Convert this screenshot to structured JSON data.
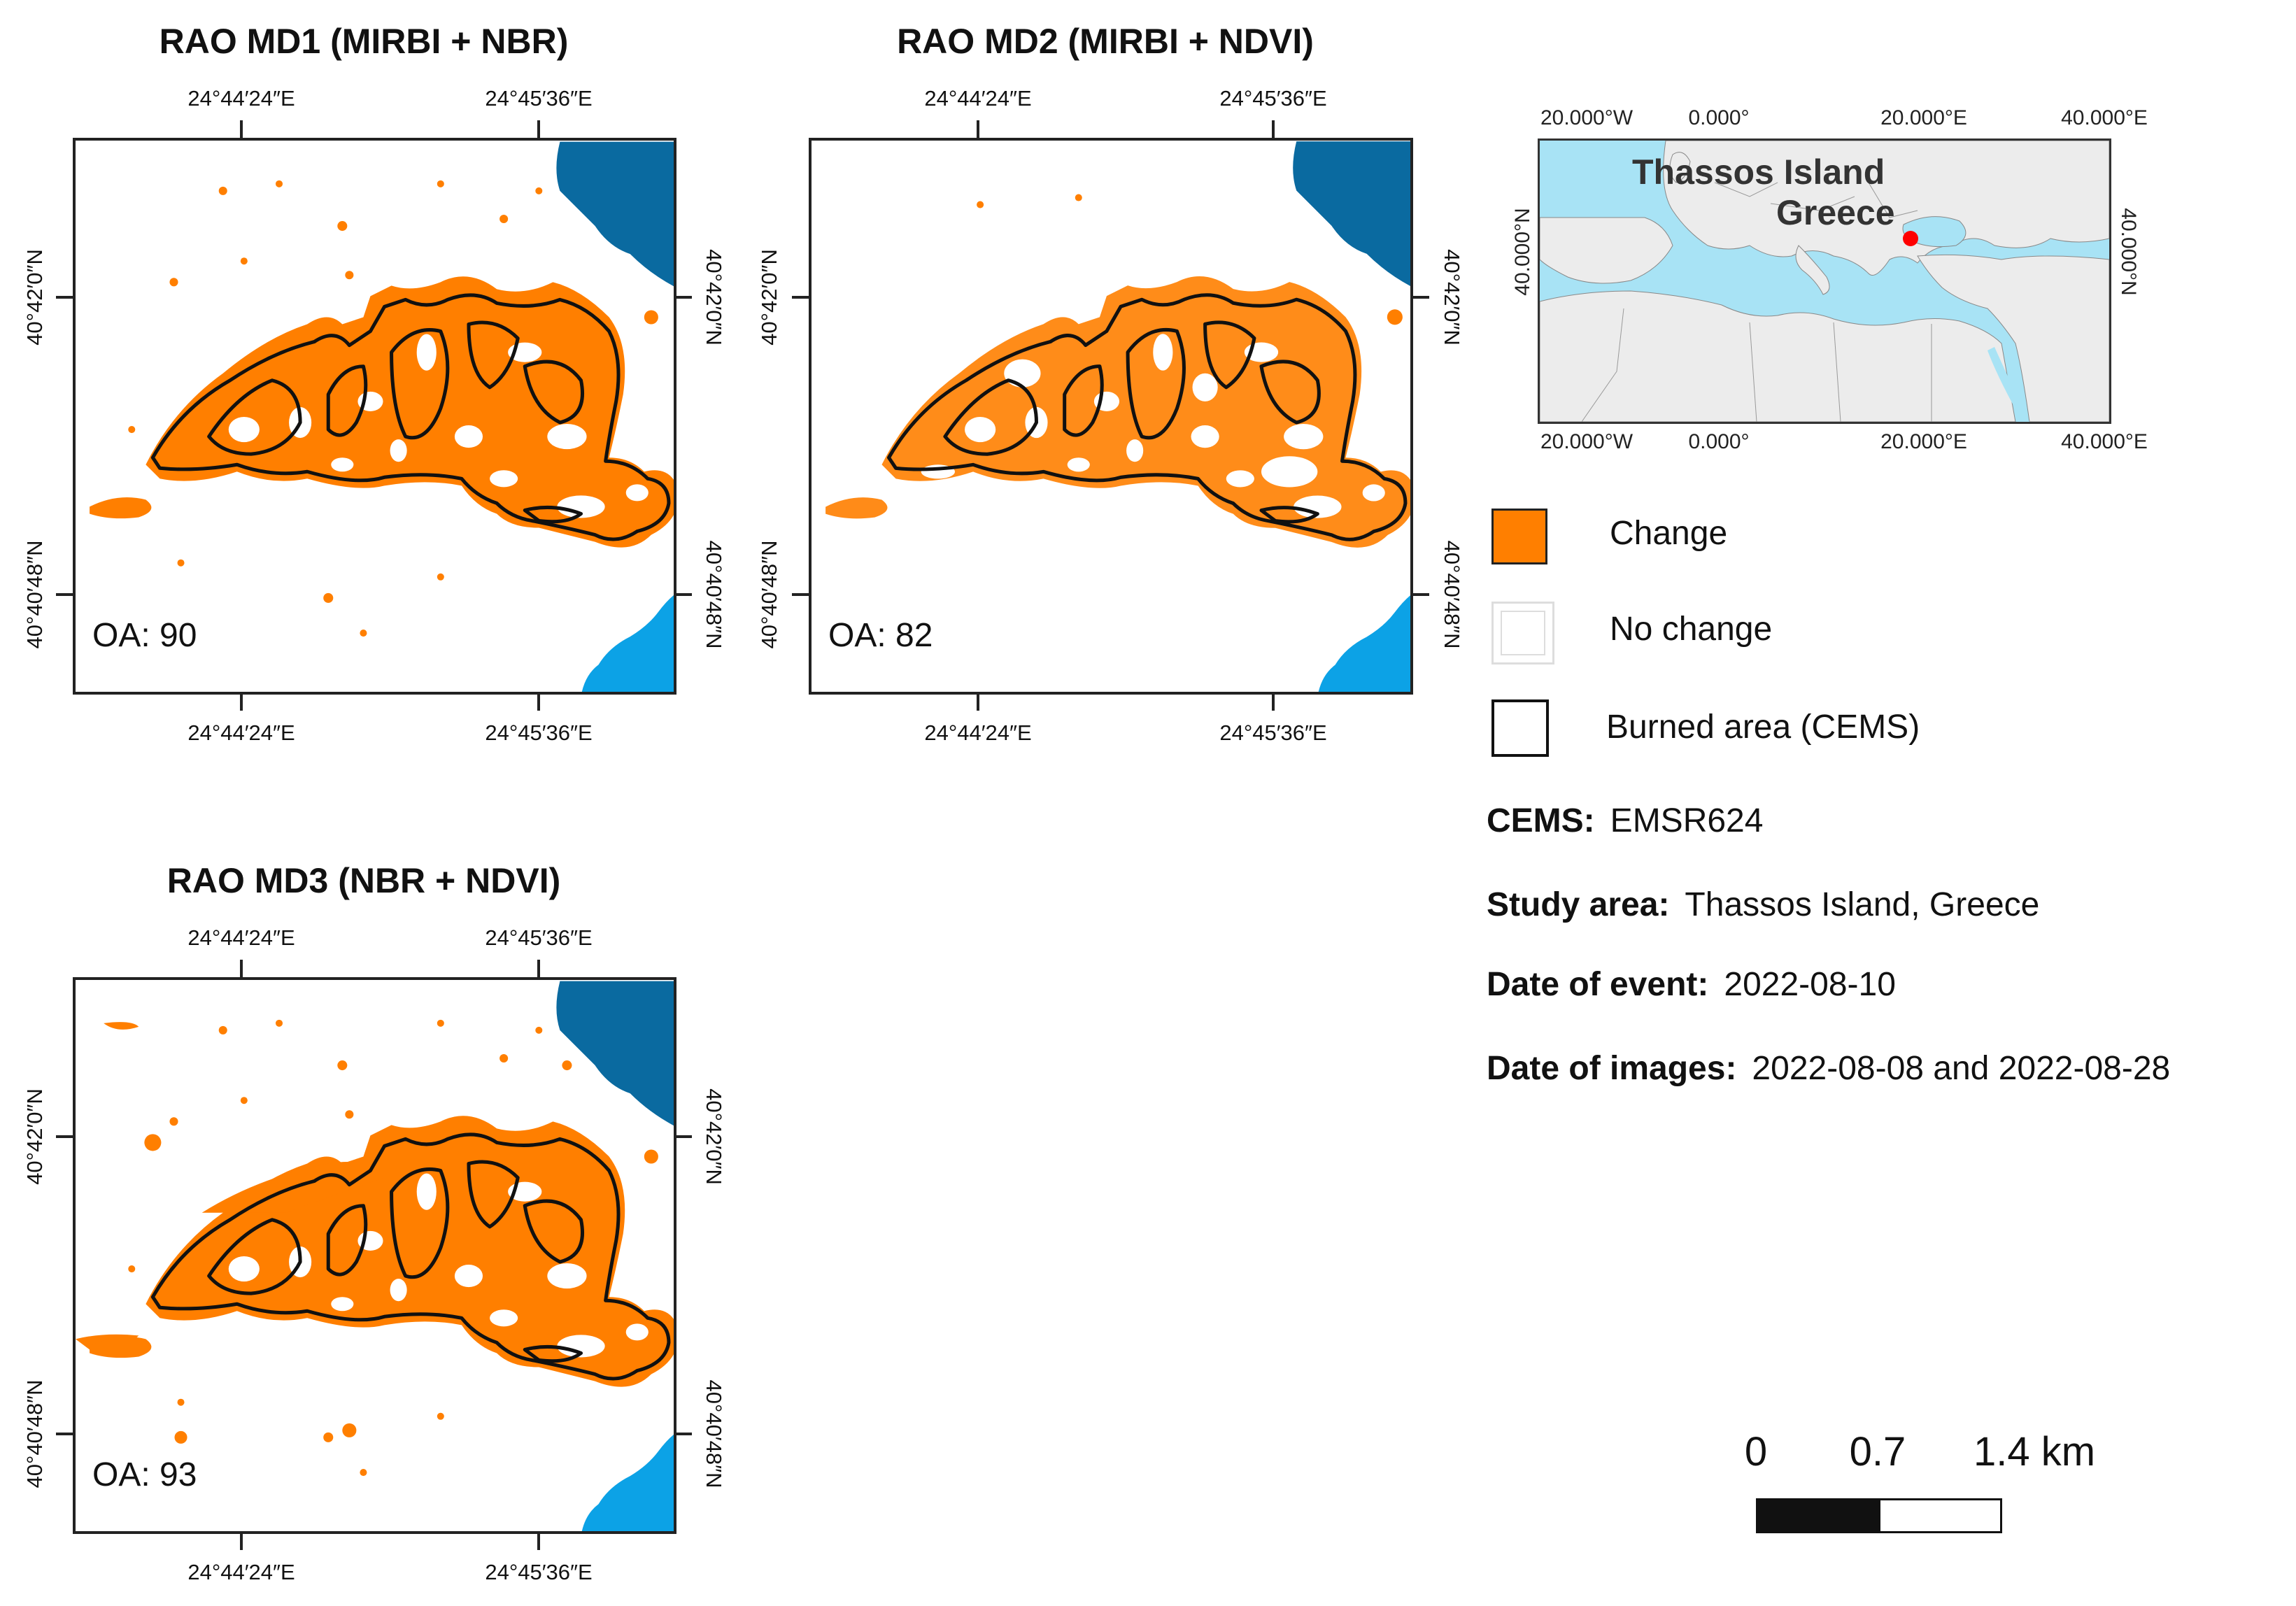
{
  "panels": [
    {
      "title": "RAO MD1 (MIRBI + NBR)",
      "oa": "OA: 90",
      "coords": {
        "top_left": "24°44′24″E",
        "top_right": "24°45′36″E",
        "bottom_left": "24°44′24″E",
        "bottom_right": "24°45′36″E",
        "left_top": "40°42′0″N",
        "left_bottom": "40°40′48″N",
        "right_top": "40°42′0″N",
        "right_bottom": "40°40′48″N"
      }
    },
    {
      "title": "RAO MD2 (MIRBI + NDVI)",
      "oa": "OA: 82",
      "coords": {
        "top_left": "24°44′24″E",
        "top_right": "24°45′36″E",
        "bottom_left": "24°44′24″E",
        "bottom_right": "24°45′36″E",
        "left_top": "40°42′0″N",
        "left_bottom": "40°40′48″N",
        "right_top": "40°42′0″N",
        "right_bottom": "40°40′48″N"
      }
    },
    {
      "title": "RAO MD3 (NBR + NDVI)",
      "oa": "OA: 93",
      "coords": {
        "top_left": "24°44′24″E",
        "top_right": "24°45′36″E",
        "bottom_left": "24°44′24″E",
        "bottom_right": "24°45′36″E",
        "left_top": "40°42′0″N",
        "left_bottom": "40°40′48″N",
        "right_top": "40°42′0″N",
        "right_bottom": "40°40′48″N"
      }
    }
  ],
  "inset_map": {
    "label_line1": "Thassos Island",
    "label_line2": "Greece",
    "top_labels": [
      "20.000°W",
      "0.000°",
      "20.000°E",
      "40.000°E"
    ],
    "bottom_labels": [
      "20.000°W",
      "0.000°",
      "20.000°E",
      "40.000°E"
    ],
    "left_label": "40.000°N",
    "right_label": "40.000°N",
    "colors": {
      "sea": "#a8e3f5",
      "land": "#ececec",
      "marker": "#ff0000"
    }
  },
  "legend": {
    "change": "Change",
    "no_change": "No change",
    "burned": "Burned area (CEMS)",
    "colors": {
      "change": "#ff7f00",
      "burned_outline": "#111111"
    }
  },
  "info": {
    "cems_label": "CEMS:",
    "cems_value": "EMSR624",
    "study_label": "Study area:",
    "study_value": "Thassos Island, Greece",
    "event_label": "Date of event:",
    "event_value": "2022-08-10",
    "images_label": "Date of images:",
    "images_value": "2022-08-08 and 2022-08-28"
  },
  "scale_bar": {
    "labels": [
      "0",
      "0.7",
      "1.4 km"
    ]
  },
  "colors": {
    "change": "#ff7f00",
    "sea_dark": "#0a6aa0",
    "sea_light": "#0ca2e6"
  }
}
